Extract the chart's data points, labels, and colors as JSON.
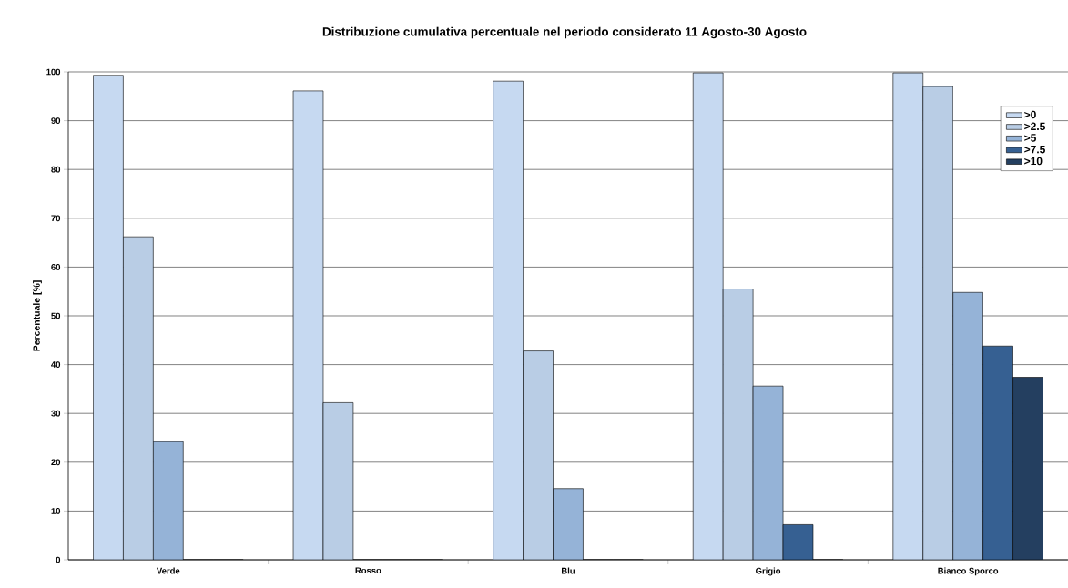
{
  "chart_data": {
    "type": "bar",
    "title": "Distribuzione cumulativa percentuale nel periodo considerato 11 Agosto-30 Agosto",
    "ylabel": "Percentuale [%]",
    "categories": [
      "Verde",
      "Rosso",
      "Blu",
      "Grigio",
      "Bianco Sporco"
    ],
    "series": [
      {
        "name": ">0",
        "color": "#c6d9f1",
        "values": [
          99.3,
          96.1,
          98.1,
          99.8,
          99.8
        ]
      },
      {
        "name": ">2.5",
        "color": "#b9cde5",
        "values": [
          66.2,
          32.2,
          42.8,
          55.5,
          97.0
        ]
      },
      {
        "name": ">5",
        "color": "#95b3d7",
        "values": [
          24.2,
          0,
          14.6,
          35.6,
          54.8
        ]
      },
      {
        "name": ">7.5",
        "color": "#366092",
        "values": [
          0,
          0,
          0,
          7.2,
          43.8
        ]
      },
      {
        "name": ">10",
        "color": "#243f60",
        "values": [
          0,
          0,
          0,
          0,
          37.4
        ]
      }
    ],
    "ylim": [
      0,
      100
    ],
    "yticks": [
      0,
      10,
      20,
      30,
      40,
      50,
      60,
      70,
      80,
      90,
      100
    ],
    "grid": "y",
    "legend": "top right"
  }
}
